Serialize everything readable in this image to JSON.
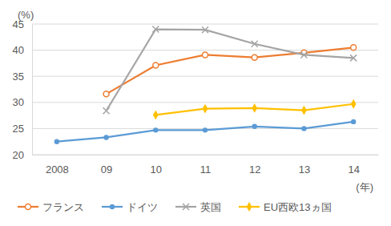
{
  "chart_data": {
    "type": "line",
    "y_label": "(%)",
    "x_label": "(年)",
    "categories": [
      "2008",
      "09",
      "10",
      "11",
      "12",
      "13",
      "14"
    ],
    "series": [
      {
        "name": "フランス",
        "color": "#ED7D31",
        "marker": "circle-open",
        "values": [
          null,
          31.6,
          37.1,
          39.1,
          38.6,
          39.5,
          40.5
        ]
      },
      {
        "name": "ドイツ",
        "color": "#5B9BD5",
        "marker": "circle",
        "values": [
          22.5,
          23.3,
          24.7,
          24.7,
          25.4,
          25.0,
          26.3
        ]
      },
      {
        "name": "英国",
        "color": "#A5A5A5",
        "marker": "x",
        "values": [
          null,
          28.4,
          44.0,
          43.9,
          41.2,
          39.1,
          38.5
        ]
      },
      {
        "name": "EU西欧13ヵ国",
        "color": "#FFC000",
        "marker": "diamond",
        "values": [
          null,
          null,
          27.6,
          28.8,
          28.9,
          28.5,
          29.7
        ]
      }
    ],
    "ylim": [
      20,
      45
    ],
    "yticks": [
      20,
      25,
      30,
      35,
      40,
      45
    ],
    "grid": true,
    "legend": "bottom"
  }
}
